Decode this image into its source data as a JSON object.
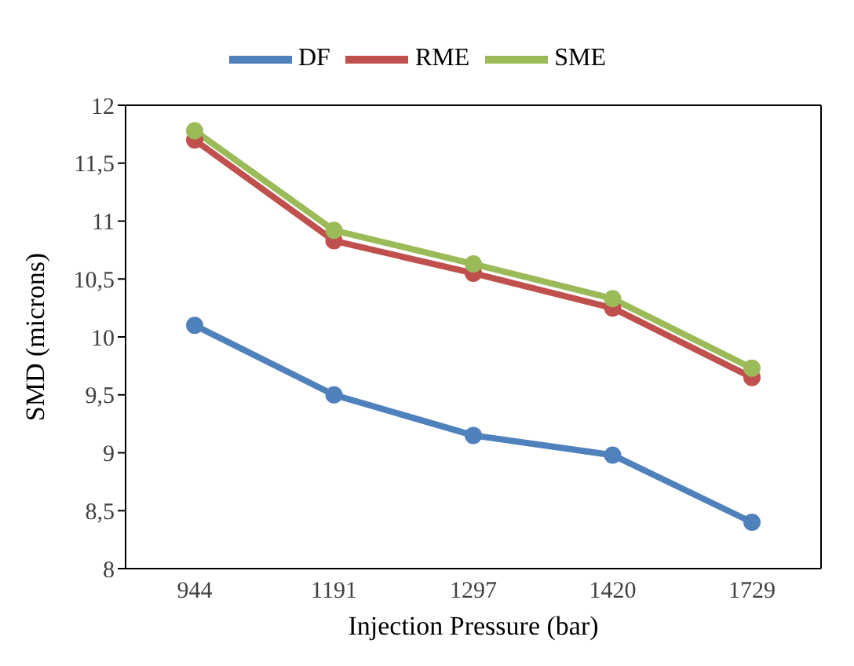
{
  "chart_data": {
    "type": "line",
    "xlabel": "Injection Pressure (bar)",
    "ylabel": "SMD (microns)",
    "categories": [
      "944",
      "1191",
      "1297",
      "1420",
      "1729"
    ],
    "series": [
      {
        "name": "DF",
        "color": "#4f81bd",
        "values": [
          10.1,
          9.5,
          9.15,
          8.98,
          8.4
        ]
      },
      {
        "name": "RME",
        "color": "#c0504d",
        "values": [
          11.7,
          10.83,
          10.55,
          10.25,
          9.65
        ]
      },
      {
        "name": "SME",
        "color": "#9bbb59",
        "values": [
          11.78,
          10.92,
          10.63,
          10.33,
          9.73
        ]
      }
    ],
    "ylim": [
      8,
      12
    ],
    "yticks": [
      8,
      {
        "value": 8.5,
        "label": "8,5"
      },
      9,
      {
        "value": 9.5,
        "label": "9,5"
      },
      10,
      {
        "value": 10.5,
        "label": "10,5"
      },
      11,
      {
        "value": 11.5,
        "label": "11,5"
      },
      12
    ],
    "grid": false,
    "legend": "top",
    "marker": "circle",
    "line_style": "solid"
  }
}
